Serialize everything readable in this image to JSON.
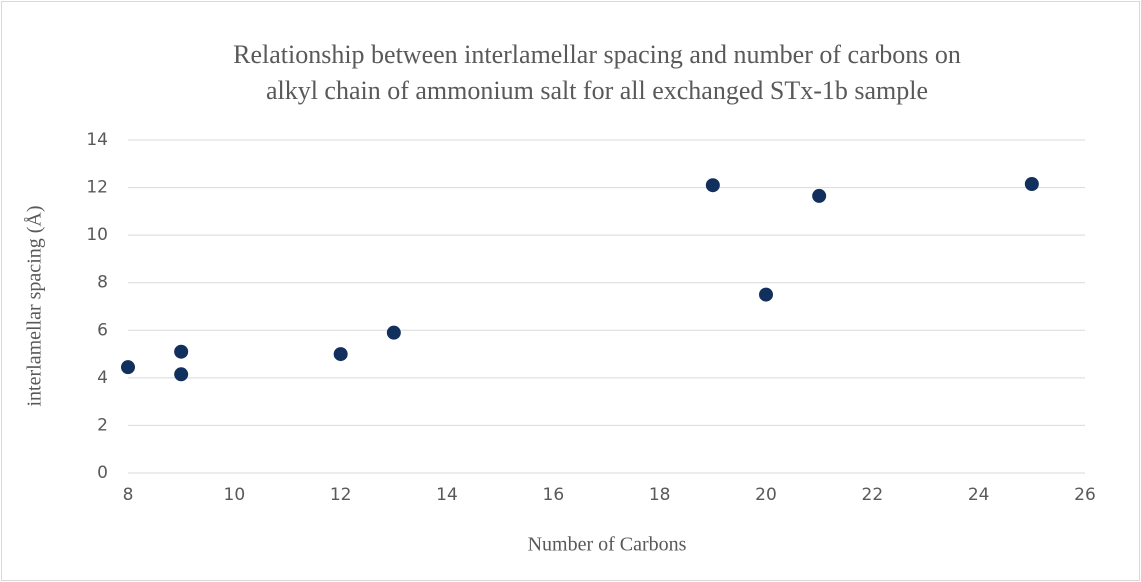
{
  "chart_data": {
    "type": "scatter",
    "title": [
      "Relationship between interlamellar spacing and number of carbons on",
      "alkyl chain of ammonium salt for all exchanged STx-1b sample"
    ],
    "x_label": "Number of Carbons",
    "y_label": "interlamellar spacing (Å)",
    "x": [
      8,
      9,
      9,
      12,
      13,
      19,
      20,
      21,
      25
    ],
    "values": [
      4.45,
      5.1,
      4.15,
      5.0,
      5.9,
      12.1,
      7.5,
      11.65,
      12.15
    ],
    "color": "#12305e",
    "xlim": [
      8,
      26
    ],
    "xticks": [
      8,
      10,
      12,
      14,
      16,
      18,
      20,
      22,
      24,
      26
    ],
    "ylim": [
      0,
      14
    ],
    "yticks": [
      0,
      2,
      4,
      6,
      8,
      10,
      12,
      14
    ],
    "grid": true
  }
}
